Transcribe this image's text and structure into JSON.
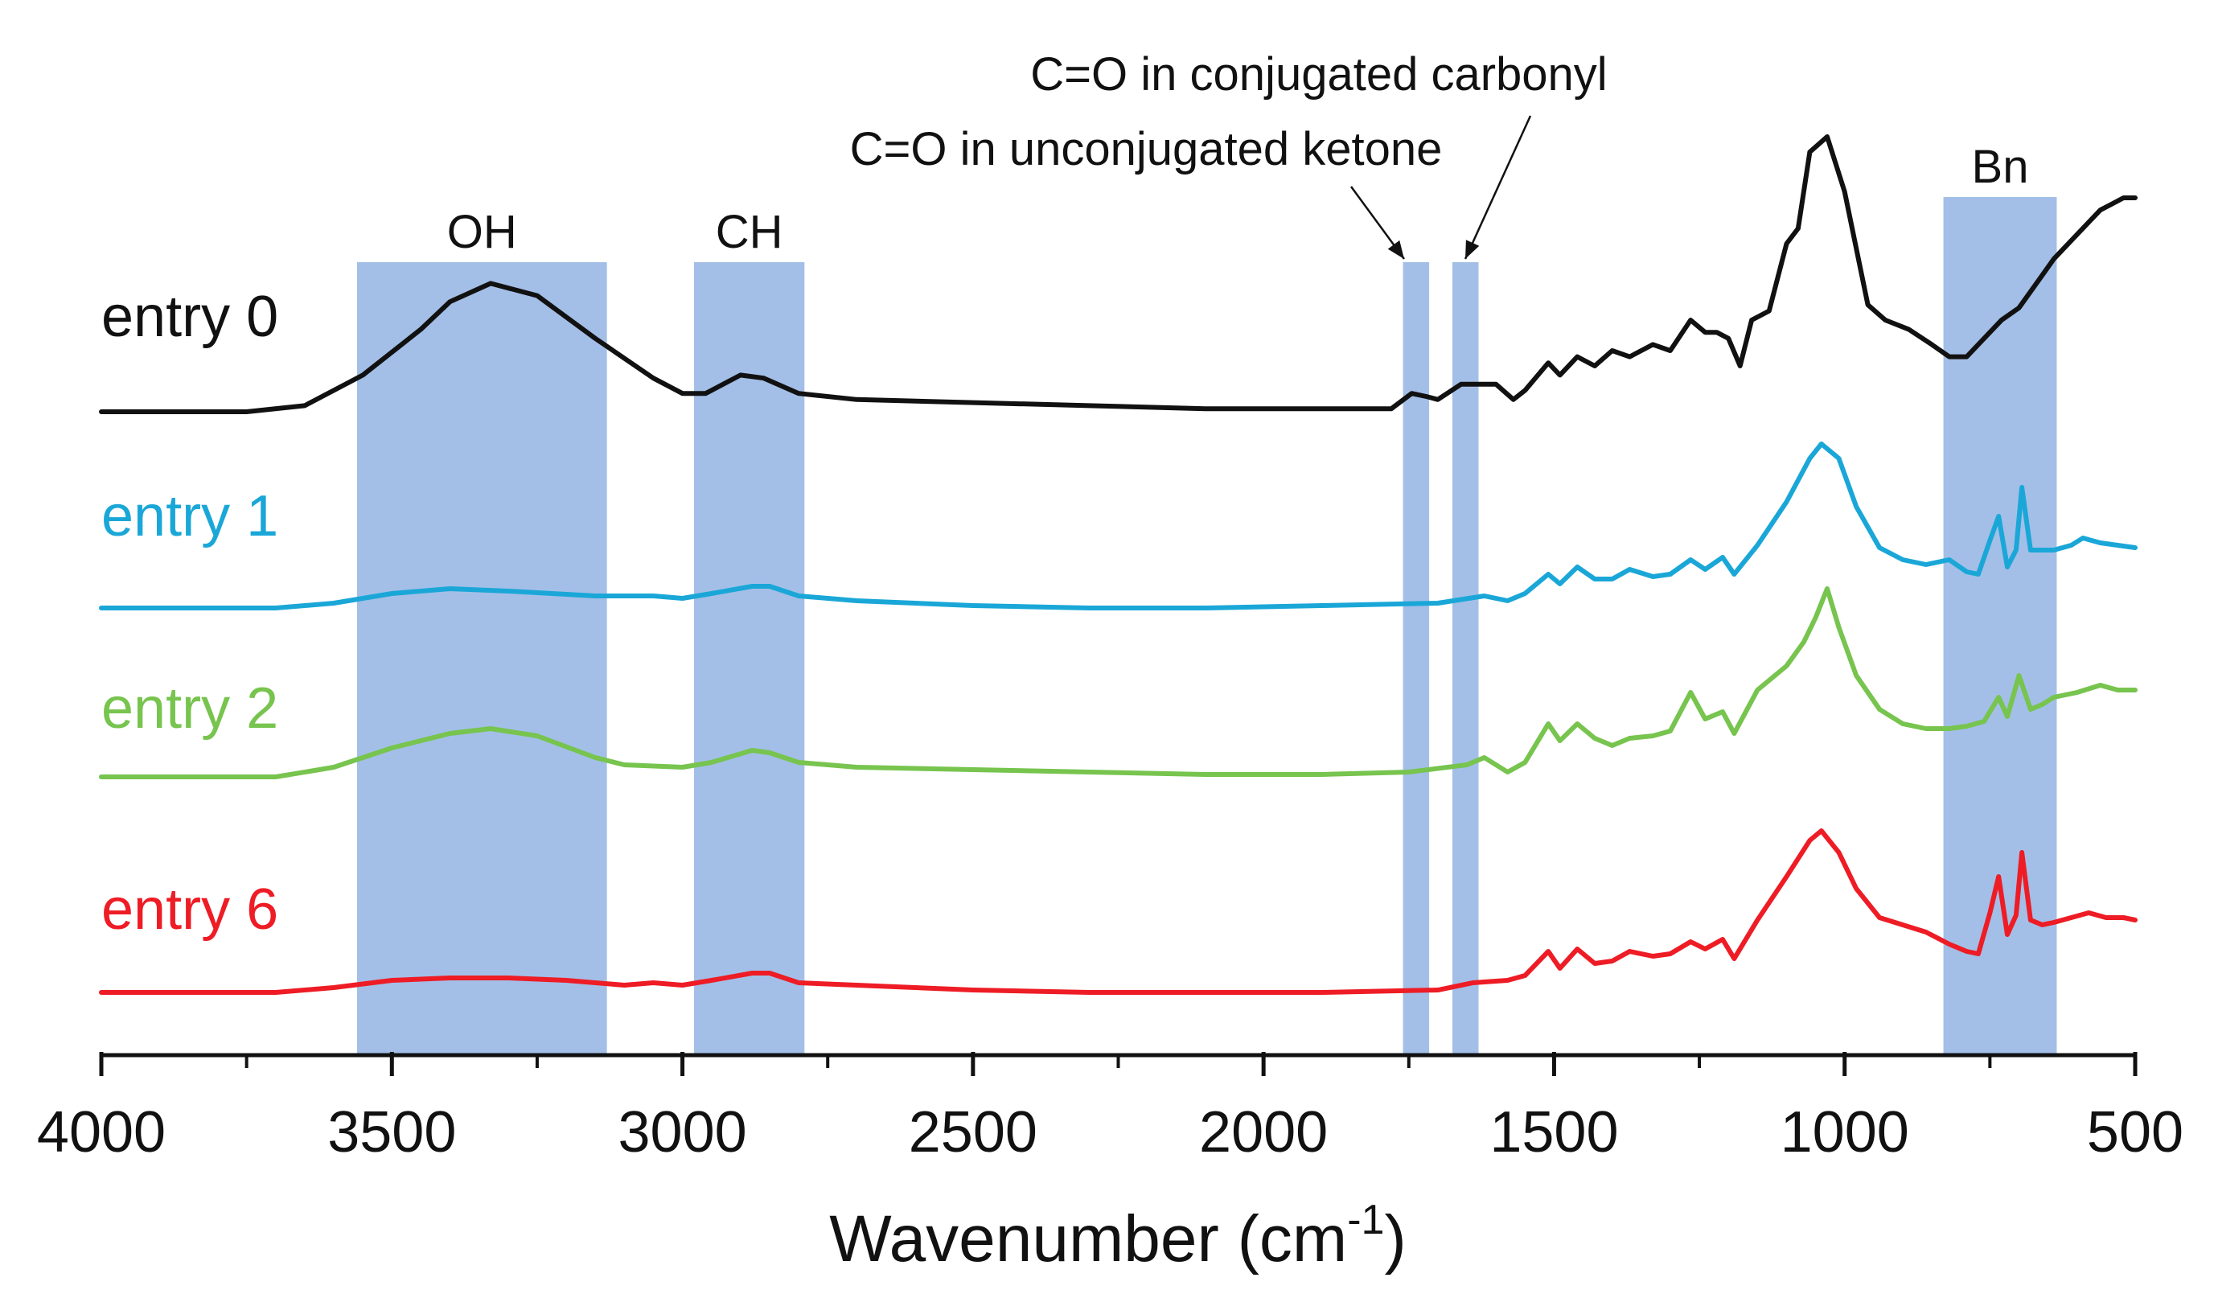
{
  "chart_data": {
    "type": "line",
    "title": "",
    "xlabel": "Wavenumber (cm",
    "xlabel_sup": "-1",
    "xlabel_close": ")",
    "ylabel": "",
    "xlim": [
      4000,
      500
    ],
    "x_reversed": true,
    "x_ticks": [
      4000,
      3500,
      3000,
      2500,
      2000,
      1500,
      1000,
      500
    ],
    "x_tick_labels": [
      "4000",
      "3500",
      "3000",
      "2500",
      "2000",
      "1500",
      "1000",
      "500"
    ],
    "y_unit": "arbitrary (stacked, offset)",
    "series": [
      {
        "name": "entry 0",
        "color": "#111111",
        "baseline": 0.0,
        "points": [
          [
            4000,
            0.0
          ],
          [
            3750,
            0.0
          ],
          [
            3650,
            0.02
          ],
          [
            3550,
            0.12
          ],
          [
            3450,
            0.27
          ],
          [
            3400,
            0.36
          ],
          [
            3330,
            0.42
          ],
          [
            3250,
            0.38
          ],
          [
            3150,
            0.24
          ],
          [
            3050,
            0.11
          ],
          [
            3000,
            0.06
          ],
          [
            2960,
            0.06
          ],
          [
            2900,
            0.12
          ],
          [
            2860,
            0.11
          ],
          [
            2800,
            0.06
          ],
          [
            2700,
            0.04
          ],
          [
            2500,
            0.03
          ],
          [
            2300,
            0.02
          ],
          [
            2100,
            0.01
          ],
          [
            1900,
            0.01
          ],
          [
            1780,
            0.01
          ],
          [
            1745,
            0.06
          ],
          [
            1720,
            0.05
          ],
          [
            1700,
            0.04
          ],
          [
            1660,
            0.09
          ],
          [
            1600,
            0.09
          ],
          [
            1570,
            0.04
          ],
          [
            1550,
            0.07
          ],
          [
            1510,
            0.16
          ],
          [
            1490,
            0.12
          ],
          [
            1460,
            0.18
          ],
          [
            1430,
            0.15
          ],
          [
            1400,
            0.2
          ],
          [
            1370,
            0.18
          ],
          [
            1330,
            0.22
          ],
          [
            1300,
            0.2
          ],
          [
            1265,
            0.3
          ],
          [
            1240,
            0.26
          ],
          [
            1220,
            0.26
          ],
          [
            1200,
            0.24
          ],
          [
            1180,
            0.15
          ],
          [
            1160,
            0.3
          ],
          [
            1130,
            0.33
          ],
          [
            1100,
            0.55
          ],
          [
            1080,
            0.6
          ],
          [
            1060,
            0.85
          ],
          [
            1030,
            0.9
          ],
          [
            1000,
            0.72
          ],
          [
            960,
            0.35
          ],
          [
            930,
            0.3
          ],
          [
            890,
            0.27
          ],
          [
            850,
            0.22
          ],
          [
            820,
            0.18
          ],
          [
            790,
            0.18
          ],
          [
            760,
            0.24
          ],
          [
            730,
            0.3
          ],
          [
            700,
            0.34
          ],
          [
            670,
            0.42
          ],
          [
            640,
            0.5
          ],
          [
            600,
            0.58
          ],
          [
            560,
            0.66
          ],
          [
            540,
            0.68
          ],
          [
            520,
            0.7
          ],
          [
            500,
            0.7
          ]
        ]
      },
      {
        "name": "entry 1",
        "color": "#1aa7d8",
        "baseline": 0.0,
        "points": [
          [
            4000,
            0.0
          ],
          [
            3700,
            0.0
          ],
          [
            3600,
            0.02
          ],
          [
            3500,
            0.06
          ],
          [
            3400,
            0.08
          ],
          [
            3300,
            0.07
          ],
          [
            3150,
            0.05
          ],
          [
            3050,
            0.05
          ],
          [
            3000,
            0.04
          ],
          [
            2950,
            0.06
          ],
          [
            2880,
            0.09
          ],
          [
            2850,
            0.09
          ],
          [
            2800,
            0.05
          ],
          [
            2700,
            0.03
          ],
          [
            2500,
            0.01
          ],
          [
            2300,
            0.0
          ],
          [
            2100,
            0.0
          ],
          [
            1900,
            0.01
          ],
          [
            1700,
            0.02
          ],
          [
            1620,
            0.05
          ],
          [
            1580,
            0.03
          ],
          [
            1550,
            0.06
          ],
          [
            1510,
            0.14
          ],
          [
            1490,
            0.1
          ],
          [
            1460,
            0.17
          ],
          [
            1430,
            0.12
          ],
          [
            1400,
            0.12
          ],
          [
            1370,
            0.16
          ],
          [
            1330,
            0.13
          ],
          [
            1300,
            0.14
          ],
          [
            1265,
            0.2
          ],
          [
            1240,
            0.16
          ],
          [
            1210,
            0.21
          ],
          [
            1190,
            0.14
          ],
          [
            1150,
            0.26
          ],
          [
            1100,
            0.44
          ],
          [
            1060,
            0.62
          ],
          [
            1040,
            0.68
          ],
          [
            1010,
            0.62
          ],
          [
            980,
            0.42
          ],
          [
            940,
            0.25
          ],
          [
            900,
            0.2
          ],
          [
            860,
            0.18
          ],
          [
            820,
            0.2
          ],
          [
            790,
            0.15
          ],
          [
            770,
            0.14
          ],
          [
            750,
            0.28
          ],
          [
            735,
            0.38
          ],
          [
            720,
            0.17
          ],
          [
            705,
            0.24
          ],
          [
            695,
            0.5
          ],
          [
            680,
            0.24
          ],
          [
            660,
            0.24
          ],
          [
            640,
            0.24
          ],
          [
            610,
            0.26
          ],
          [
            590,
            0.29
          ],
          [
            560,
            0.27
          ],
          [
            530,
            0.26
          ],
          [
            500,
            0.25
          ]
        ]
      },
      {
        "name": "entry 2",
        "color": "#77c44e",
        "baseline": 0.0,
        "points": [
          [
            4000,
            0.0
          ],
          [
            3700,
            0.0
          ],
          [
            3600,
            0.04
          ],
          [
            3500,
            0.12
          ],
          [
            3400,
            0.18
          ],
          [
            3330,
            0.2
          ],
          [
            3250,
            0.17
          ],
          [
            3150,
            0.08
          ],
          [
            3100,
            0.05
          ],
          [
            3000,
            0.04
          ],
          [
            2950,
            0.06
          ],
          [
            2880,
            0.11
          ],
          [
            2850,
            0.1
          ],
          [
            2800,
            0.06
          ],
          [
            2700,
            0.04
          ],
          [
            2500,
            0.03
          ],
          [
            2300,
            0.02
          ],
          [
            2100,
            0.01
          ],
          [
            1900,
            0.01
          ],
          [
            1750,
            0.02
          ],
          [
            1650,
            0.05
          ],
          [
            1620,
            0.08
          ],
          [
            1580,
            0.02
          ],
          [
            1550,
            0.06
          ],
          [
            1510,
            0.22
          ],
          [
            1490,
            0.15
          ],
          [
            1460,
            0.22
          ],
          [
            1430,
            0.16
          ],
          [
            1400,
            0.13
          ],
          [
            1370,
            0.16
          ],
          [
            1330,
            0.17
          ],
          [
            1300,
            0.19
          ],
          [
            1265,
            0.35
          ],
          [
            1240,
            0.24
          ],
          [
            1210,
            0.27
          ],
          [
            1190,
            0.18
          ],
          [
            1150,
            0.36
          ],
          [
            1100,
            0.46
          ],
          [
            1070,
            0.56
          ],
          [
            1050,
            0.66
          ],
          [
            1030,
            0.78
          ],
          [
            1010,
            0.62
          ],
          [
            980,
            0.42
          ],
          [
            940,
            0.28
          ],
          [
            900,
            0.22
          ],
          [
            860,
            0.2
          ],
          [
            820,
            0.2
          ],
          [
            790,
            0.21
          ],
          [
            760,
            0.23
          ],
          [
            735,
            0.33
          ],
          [
            720,
            0.25
          ],
          [
            700,
            0.42
          ],
          [
            680,
            0.28
          ],
          [
            660,
            0.3
          ],
          [
            640,
            0.33
          ],
          [
            600,
            0.35
          ],
          [
            560,
            0.38
          ],
          [
            530,
            0.36
          ],
          [
            500,
            0.36
          ]
        ]
      },
      {
        "name": "entry 6",
        "color": "#ee1c25",
        "baseline": 0.0,
        "points": [
          [
            4000,
            0.0
          ],
          [
            3700,
            0.0
          ],
          [
            3600,
            0.02
          ],
          [
            3500,
            0.05
          ],
          [
            3400,
            0.06
          ],
          [
            3300,
            0.06
          ],
          [
            3200,
            0.05
          ],
          [
            3100,
            0.03
          ],
          [
            3050,
            0.04
          ],
          [
            3000,
            0.03
          ],
          [
            2950,
            0.05
          ],
          [
            2880,
            0.08
          ],
          [
            2850,
            0.08
          ],
          [
            2800,
            0.04
          ],
          [
            2700,
            0.03
          ],
          [
            2500,
            0.01
          ],
          [
            2300,
            0.0
          ],
          [
            2100,
            0.0
          ],
          [
            1900,
            0.0
          ],
          [
            1700,
            0.01
          ],
          [
            1640,
            0.04
          ],
          [
            1580,
            0.05
          ],
          [
            1550,
            0.07
          ],
          [
            1510,
            0.17
          ],
          [
            1490,
            0.1
          ],
          [
            1460,
            0.18
          ],
          [
            1430,
            0.12
          ],
          [
            1400,
            0.13
          ],
          [
            1370,
            0.17
          ],
          [
            1330,
            0.15
          ],
          [
            1300,
            0.16
          ],
          [
            1265,
            0.21
          ],
          [
            1240,
            0.18
          ],
          [
            1210,
            0.22
          ],
          [
            1190,
            0.14
          ],
          [
            1150,
            0.3
          ],
          [
            1100,
            0.48
          ],
          [
            1060,
            0.63
          ],
          [
            1040,
            0.67
          ],
          [
            1010,
            0.58
          ],
          [
            980,
            0.43
          ],
          [
            940,
            0.31
          ],
          [
            900,
            0.28
          ],
          [
            860,
            0.25
          ],
          [
            820,
            0.2
          ],
          [
            790,
            0.17
          ],
          [
            770,
            0.16
          ],
          [
            750,
            0.33
          ],
          [
            735,
            0.48
          ],
          [
            720,
            0.24
          ],
          [
            705,
            0.32
          ],
          [
            695,
            0.58
          ],
          [
            680,
            0.3
          ],
          [
            660,
            0.28
          ],
          [
            640,
            0.29
          ],
          [
            610,
            0.31
          ],
          [
            580,
            0.33
          ],
          [
            550,
            0.31
          ],
          [
            520,
            0.31
          ],
          [
            500,
            0.3
          ]
        ]
      }
    ],
    "bands": [
      {
        "label": "OH",
        "from": 3560,
        "to": 3130
      },
      {
        "label": "CH",
        "from": 2980,
        "to": 2790
      },
      {
        "label": "",
        "from": 1760,
        "to": 1715
      },
      {
        "label": "",
        "from": 1675,
        "to": 1630
      },
      {
        "label": "Bn",
        "from": 830,
        "to": 635
      }
    ],
    "annotations": [
      {
        "text": "C=O in unconjugated ketone",
        "points_to": 1740
      },
      {
        "text": "C=O in conjugated carbonyl",
        "points_to": 1650
      }
    ],
    "band_color": "#a3bfe7",
    "grid": false,
    "legend": "inline-left"
  }
}
